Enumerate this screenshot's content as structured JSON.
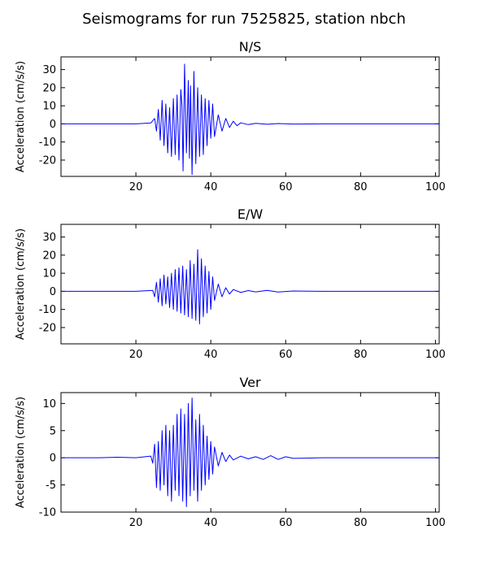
{
  "title": "Seismograms for run 7525825, station nbch",
  "line_color": "#0000ff",
  "chart_data": [
    {
      "type": "line",
      "title": "N/S",
      "xlabel": "",
      "ylabel": "Acceleration (cm/s/s)",
      "xlim": [
        0,
        101
      ],
      "ylim": [
        -29,
        37
      ],
      "xticks": [
        20,
        40,
        60,
        80,
        100
      ],
      "yticks": [
        -20,
        -10,
        0,
        10,
        20,
        30
      ],
      "series": [
        {
          "x": [
            0,
            10,
            20,
            24,
            25,
            25.5,
            26,
            26.5,
            27,
            27.5,
            28,
            28.5,
            29,
            29.5,
            30,
            30.5,
            31,
            31.5,
            32,
            32.3,
            32.6,
            33,
            33.5,
            34,
            34.3,
            34.6,
            35,
            35.5,
            36,
            36.5,
            37,
            37.5,
            38,
            38.5,
            39,
            39.5,
            40,
            40.5,
            41,
            42,
            43,
            44,
            45,
            46,
            47,
            48,
            50,
            52,
            55,
            58,
            62,
            70,
            80,
            90,
            101
          ],
          "y": [
            0,
            0,
            0,
            0.5,
            3,
            -4,
            8,
            -9,
            13,
            -12,
            11,
            -16,
            9,
            -18,
            14,
            -17,
            16,
            -20,
            19,
            10,
            -26,
            33,
            -16,
            24,
            -19,
            21,
            -28,
            29,
            -22,
            20,
            -18,
            16,
            -17,
            14,
            -12,
            13,
            -8,
            11,
            -7,
            5,
            -4,
            3,
            -2,
            1.5,
            -1,
            0.6,
            -0.4,
            0.3,
            -0.2,
            0.2,
            -0.1,
            0,
            0,
            0,
            0
          ]
        }
      ]
    },
    {
      "type": "line",
      "title": "E/W",
      "xlabel": "",
      "ylabel": "Acceleration (cm/s/s)",
      "xlim": [
        0,
        101
      ],
      "ylim": [
        -29,
        37
      ],
      "xticks": [
        20,
        40,
        60,
        80,
        100
      ],
      "yticks": [
        -20,
        -10,
        0,
        10,
        20,
        30
      ],
      "series": [
        {
          "x": [
            0,
            10,
            20,
            24.5,
            25,
            25.5,
            26,
            26.5,
            27,
            27.5,
            28,
            28.5,
            29,
            29.5,
            30,
            30.5,
            31,
            31.5,
            32,
            32.5,
            33,
            33.5,
            34,
            34.5,
            35,
            35.5,
            36,
            36.5,
            37,
            37.5,
            38,
            38.5,
            39,
            39.5,
            40,
            40.5,
            41,
            42,
            43,
            44,
            45,
            46,
            48,
            50,
            52,
            55,
            58,
            62,
            70,
            80,
            90,
            101
          ],
          "y": [
            0,
            0,
            0,
            0.5,
            -3,
            5,
            -6,
            7,
            -8,
            9,
            -7,
            8,
            -9,
            10,
            -10,
            12,
            -11,
            13,
            -12,
            14,
            -13,
            12,
            -14,
            17,
            -15,
            15,
            -16,
            23,
            -18,
            18,
            -14,
            14,
            -12,
            11,
            -10,
            8,
            -5,
            4,
            -3,
            2,
            -1.5,
            1,
            -0.6,
            0.4,
            -0.3,
            0.5,
            -0.4,
            0.2,
            0,
            0,
            0,
            0
          ]
        }
      ]
    },
    {
      "type": "line",
      "title": "Ver",
      "xlabel": "",
      "ylabel": "Acceleration (cm/s/s)",
      "xlim": [
        0,
        101
      ],
      "ylim": [
        -10,
        12
      ],
      "xticks": [
        20,
        40,
        60,
        80,
        100
      ],
      "yticks": [
        -10,
        -5,
        0,
        5,
        10
      ],
      "series": [
        {
          "x": [
            0,
            10,
            15,
            20,
            24,
            24.5,
            25,
            25.5,
            26,
            26.5,
            27,
            27.5,
            28,
            28.5,
            29,
            29.5,
            30,
            30.5,
            31,
            31.5,
            32,
            32.5,
            33,
            33.5,
            34,
            34.5,
            35,
            35.5,
            36,
            36.5,
            37,
            37.5,
            38,
            38.5,
            39,
            39.5,
            40,
            40.5,
            41,
            42,
            43,
            44,
            45,
            46,
            48,
            50,
            52,
            54,
            56,
            58,
            60,
            62,
            70,
            80,
            90,
            101
          ],
          "y": [
            0,
            0,
            0.1,
            0,
            0.3,
            -1,
            2.5,
            -5.5,
            3,
            -6,
            5,
            -5,
            6,
            -7,
            5,
            -8,
            6,
            -6,
            8,
            -7,
            9,
            -8,
            8,
            -9,
            10,
            -7,
            11,
            -6,
            7,
            -8,
            8,
            -6,
            6,
            -5,
            4,
            -4,
            3,
            -3,
            2,
            -1.5,
            1,
            -0.7,
            0.5,
            -0.4,
            0.3,
            -0.2,
            0.2,
            -0.3,
            0.4,
            -0.3,
            0.2,
            -0.1,
            0,
            0,
            0,
            0
          ]
        }
      ]
    }
  ]
}
